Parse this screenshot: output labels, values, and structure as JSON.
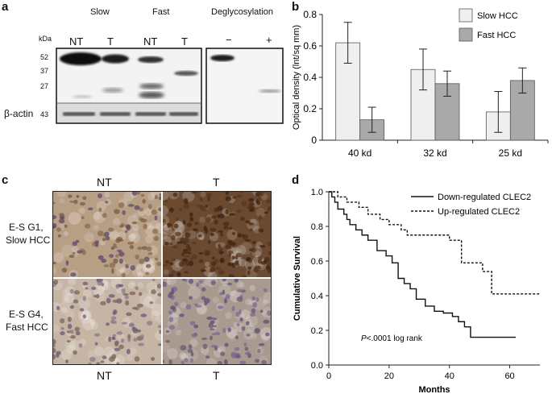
{
  "panel_a": {
    "letter": "a",
    "groups": [
      "Slow",
      "Fast",
      "Deglycosylation"
    ],
    "kda_label": "kDa",
    "lanes": [
      "NT",
      "T",
      "NT",
      "T",
      "−",
      "+"
    ],
    "markers": [
      "52",
      "37",
      "27"
    ],
    "actin_label": "β-actin",
    "actin_marker": "43"
  },
  "panel_b": {
    "letter": "b",
    "chart_data": {
      "type": "bar",
      "categories": [
        "40 kd",
        "32 kd",
        "25 kd"
      ],
      "series": [
        {
          "name": "Slow HCC",
          "values": [
            0.62,
            0.45,
            0.18
          ],
          "errors": [
            0.13,
            0.13,
            0.13
          ],
          "color": "#efefef"
        },
        {
          "name": "Fast HCC",
          "values": [
            0.13,
            0.36,
            0.38
          ],
          "errors": [
            0.08,
            0.08,
            0.08
          ],
          "color": "#a9a9a9"
        }
      ],
      "ylabel": "Optical density (lnt/sq mm)",
      "ylim": [
        0,
        0.8
      ],
      "yticks": [
        "0",
        "0.2",
        "0.4",
        "0.6",
        "0.8"
      ],
      "legend_position": "top-right"
    }
  },
  "panel_c": {
    "letter": "c",
    "col_labels": [
      "NT",
      "T"
    ],
    "row_labels": [
      [
        "E-S G1,",
        "Slow HCC"
      ],
      [
        "E-S G4,",
        "Fast HCC"
      ]
    ]
  },
  "panel_d": {
    "letter": "d",
    "chart_data": {
      "type": "line",
      "subtype": "step",
      "xlabel": "Months",
      "ylabel": "Cumulative Survival",
      "xlim": [
        0,
        70
      ],
      "ylim": [
        0,
        1.0
      ],
      "xticks": [
        "0",
        "20",
        "40",
        "60"
      ],
      "yticks": [
        "0.0",
        "0.2",
        "0.4",
        "0.6",
        "0.8",
        "1.0"
      ],
      "legend_position": "top-right",
      "annotation_p": "P",
      "annotation_rest": "<.0001 log rank",
      "series": [
        {
          "name": "Down-regulated CLEC2",
          "style": "solid",
          "x": [
            0,
            1,
            2,
            3,
            5,
            6,
            7,
            9,
            11,
            13,
            16,
            19,
            21,
            23,
            25,
            27,
            29,
            32,
            35,
            38,
            41,
            43,
            45,
            47,
            62
          ],
          "y": [
            1.0,
            0.97,
            0.94,
            0.9,
            0.87,
            0.84,
            0.81,
            0.78,
            0.75,
            0.72,
            0.66,
            0.63,
            0.59,
            0.5,
            0.47,
            0.44,
            0.38,
            0.34,
            0.31,
            0.3,
            0.28,
            0.25,
            0.22,
            0.16,
            0.16
          ]
        },
        {
          "name": "Up-regulated CLEC2",
          "style": "dashed",
          "x": [
            0,
            3,
            6,
            8,
            10,
            13,
            15,
            17,
            20,
            24,
            26,
            28,
            31,
            35,
            40,
            44,
            48,
            51,
            54,
            70
          ],
          "y": [
            1.0,
            0.97,
            0.94,
            0.94,
            0.91,
            0.87,
            0.87,
            0.84,
            0.81,
            0.78,
            0.75,
            0.75,
            0.75,
            0.75,
            0.72,
            0.59,
            0.59,
            0.54,
            0.41,
            0.41
          ]
        }
      ]
    }
  }
}
